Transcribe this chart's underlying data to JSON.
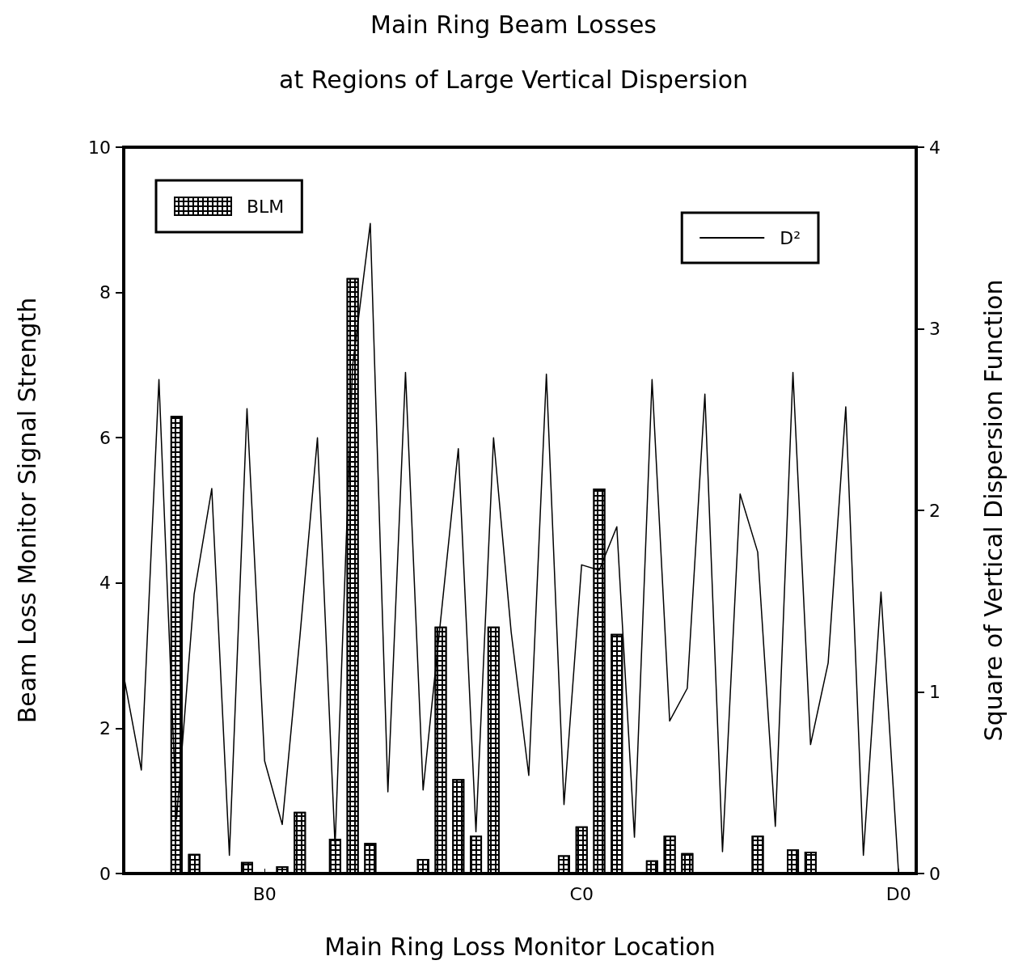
{
  "chart_data": {
    "type": "bar",
    "title": "Main Ring Beam Losses",
    "subtitle": "at Regions of Large Vertical Dispersion",
    "xlabel": "Main Ring Loss Monitor Location",
    "ylabel": "Beam Loss Monitor Signal Strength",
    "y2label": "Square of Vertical Dispersion Function",
    "categories": [
      null,
      null,
      null,
      null,
      null,
      null,
      null,
      null,
      "B0",
      null,
      null,
      null,
      null,
      null,
      null,
      null,
      null,
      null,
      null,
      null,
      null,
      null,
      null,
      null,
      null,
      null,
      "C0",
      null,
      null,
      null,
      null,
      null,
      null,
      null,
      null,
      null,
      null,
      null,
      null,
      null,
      null,
      null,
      null,
      null,
      "D0",
      null
    ],
    "ylim": [
      0,
      10
    ],
    "yticks": [
      0,
      2,
      4,
      6,
      8,
      10
    ],
    "y2lim": [
      0,
      4
    ],
    "y2ticks": [
      0,
      1,
      2,
      3,
      4
    ],
    "legend": "top",
    "grid": false,
    "series": [
      {
        "name": "BLM",
        "color": "#000000",
        "values": [
          null,
          null,
          null,
          6.3,
          0.27,
          null,
          null,
          0.16,
          null,
          0.1,
          0.85,
          null,
          0.48,
          8.2,
          0.42,
          null,
          null,
          0.2,
          3.4,
          1.3,
          0.52,
          3.4,
          null,
          null,
          null,
          0.25,
          0.65,
          5.3,
          3.3,
          null,
          0.18,
          0.52,
          0.28,
          null,
          null,
          null,
          0.52,
          null,
          0.33,
          0.3,
          null,
          null,
          null,
          null,
          null,
          null
        ]
      },
      {
        "name": "D²",
        "type": "line",
        "axis": "y2",
        "color": "#000000",
        "marker": "none",
        "line_style": "solid",
        "values": [
          1.09,
          0.57,
          2.72,
          0.3,
          1.54,
          2.12,
          0.1,
          2.56,
          0.62,
          0.27,
          1.3,
          2.4,
          0.15,
          2.8,
          3.58,
          0.45,
          2.76,
          0.46,
          1.4,
          2.34,
          0.23,
          2.4,
          1.33,
          0.54,
          2.75,
          0.38,
          1.7,
          1.67,
          1.91,
          0.2,
          2.72,
          0.84,
          1.02,
          2.64,
          0.12,
          2.09,
          1.77,
          0.26,
          2.76,
          0.71,
          1.16,
          2.57,
          0.1,
          1.55,
          0.0,
          0.0
        ]
      }
    ]
  }
}
